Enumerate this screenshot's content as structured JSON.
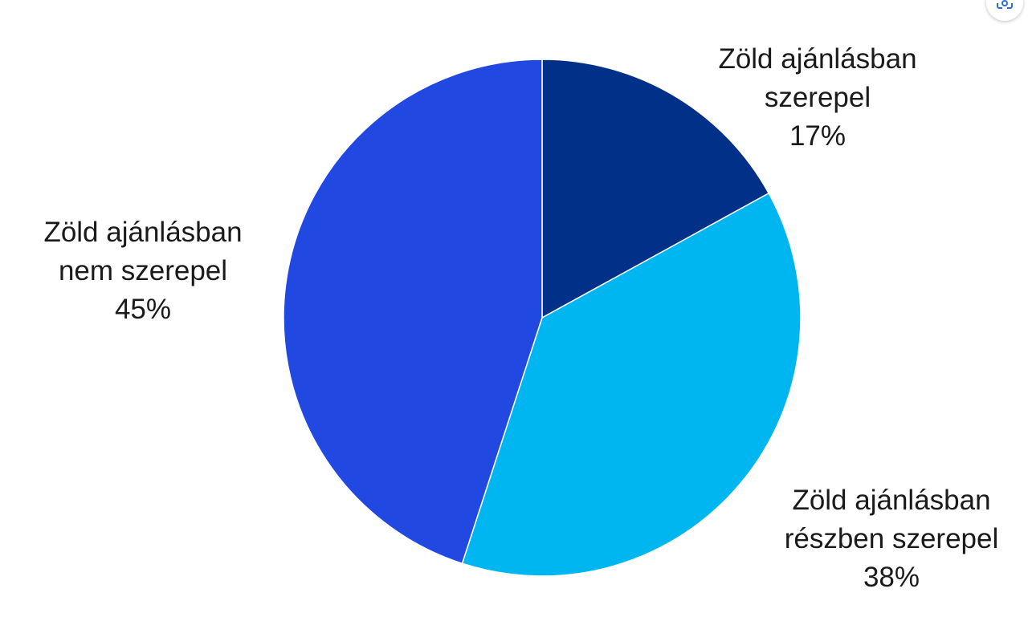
{
  "chart_data": {
    "type": "pie",
    "categories": [
      "Zöld ajánlásban szerepel",
      "Zöld ajánlásban részben szerepel",
      "Zöld ajánlásban nem szerepel"
    ],
    "values": [
      17,
      38,
      45
    ],
    "value_labels": [
      "17%",
      "38%",
      "45%"
    ],
    "colors": [
      "#003087",
      "#00b6f1",
      "#2149e1"
    ]
  }
}
